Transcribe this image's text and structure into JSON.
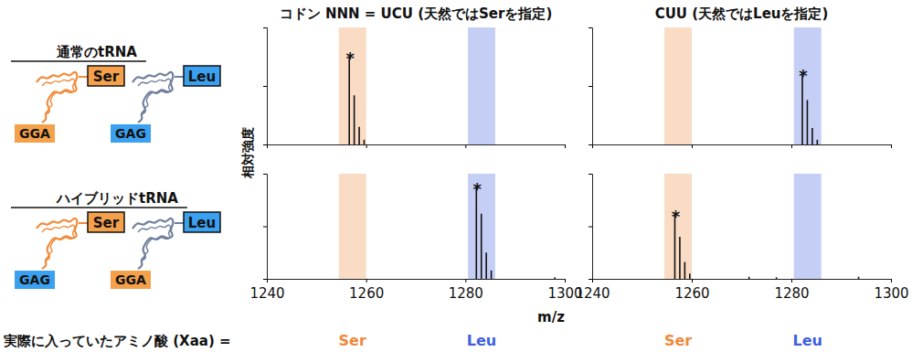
{
  "chart_data": [
    {
      "type": "stem",
      "title": "コドン NNN = UCU (天然ではSerを指定)",
      "x": [
        1256.6,
        1257.6,
        1258.6,
        1259.6
      ],
      "values": [
        75,
        42,
        15,
        4
      ],
      "xlim": [
        1240,
        1300
      ],
      "ylim": [
        0,
        100
      ],
      "xticks": [
        1240,
        1260,
        1280,
        1300
      ],
      "yticks": [
        0,
        50,
        100
      ],
      "tick_labels": false,
      "bands": [
        {
          "range": [
            1254.5,
            1260
          ],
          "color": "#f0883c"
        },
        {
          "range": [
            1280.5,
            1286
          ],
          "color": "#3f5fe0"
        }
      ],
      "annotations": [
        {
          "text": "*",
          "x": 1256.6,
          "y": 75
        }
      ]
    },
    {
      "type": "stem",
      "title": "CUU (天然ではLeuを指定)",
      "x": [
        1282.2,
        1283.2,
        1284.2,
        1285.2
      ],
      "values": [
        60,
        38,
        14,
        4
      ],
      "xlim": [
        1240,
        1300
      ],
      "ylim": [
        0,
        100
      ],
      "xticks": [
        1240,
        1260,
        1280,
        1300
      ],
      "yticks": [
        0,
        50,
        100
      ],
      "tick_labels": false,
      "bands": [
        {
          "range": [
            1254.5,
            1260
          ],
          "color": "#f0883c"
        },
        {
          "range": [
            1280.5,
            1286
          ],
          "color": "#3f5fe0"
        }
      ],
      "annotations": [
        {
          "text": "*",
          "x": 1282.2,
          "y": 60
        }
      ]
    },
    {
      "type": "stem",
      "x": [
        1282.2,
        1283.2,
        1284.2,
        1285.2,
        1298
      ],
      "values": [
        87,
        62,
        25,
        8,
        1.5
      ],
      "xlim": [
        1240,
        1300
      ],
      "ylim": [
        0,
        100
      ],
      "xticks": [
        1240,
        1260,
        1280,
        1300
      ],
      "yticks": [
        0,
        50,
        100
      ],
      "tick_labels": "x",
      "bands": [
        {
          "name": "Ser",
          "range": [
            1254.5,
            1260
          ],
          "color": "#f0883c"
        },
        {
          "name": "Leu",
          "range": [
            1280.5,
            1286
          ],
          "color": "#3f5fe0"
        }
      ],
      "annotations": [
        {
          "text": "*",
          "x": 1282.2,
          "y": 87
        }
      ]
    },
    {
      "type": "stem",
      "x": [
        1256.6,
        1257.6,
        1258.6,
        1259.6,
        1271.5,
        1277,
        1293.5
      ],
      "values": [
        61,
        40,
        16,
        5,
        2,
        1.5,
        2
      ],
      "xlim": [
        1240,
        1300
      ],
      "ylim": [
        0,
        100
      ],
      "xticks": [
        1240,
        1260,
        1280,
        1300
      ],
      "yticks": [
        0,
        50,
        100
      ],
      "tick_labels": "x",
      "bands": [
        {
          "name": "Ser",
          "range": [
            1254.5,
            1260
          ],
          "color": "#f0883c"
        },
        {
          "name": "Leu",
          "range": [
            1280.5,
            1286
          ],
          "color": "#3f5fe0"
        }
      ],
      "annotations": [
        {
          "text": "*",
          "x": 1256.6,
          "y": 61
        }
      ]
    }
  ],
  "figure": {
    "y_label": "相対強度",
    "x_label": "m/z",
    "footer": "実際に入っていたアミノ酸 (Xaa) =",
    "trna_panels": [
      {
        "title": "通常のtRNA",
        "trnas": [
          {
            "amino_acid": "Ser",
            "anticodon": "GGA",
            "color": "#f5a04a",
            "anticodon_color": "#f5a04a",
            "body_color": "#f08c3c"
          },
          {
            "amino_acid": "Leu",
            "anticodon": "GAG",
            "color": "#3aa0f0",
            "anticodon_color": "#3aa0f0",
            "body_color": "#6f7f9c"
          }
        ]
      },
      {
        "title": "ハイブリッドtRNA",
        "trnas": [
          {
            "amino_acid": "Ser",
            "anticodon": "GAG",
            "color": "#f5a04a",
            "anticodon_color": "#3aa0f0",
            "body_color": "#f08c3c"
          },
          {
            "amino_acid": "Leu",
            "anticodon": "GGA",
            "color": "#3aa0f0",
            "anticodon_color": "#f5a04a",
            "body_color": "#6f7f9c"
          }
        ]
      }
    ]
  }
}
